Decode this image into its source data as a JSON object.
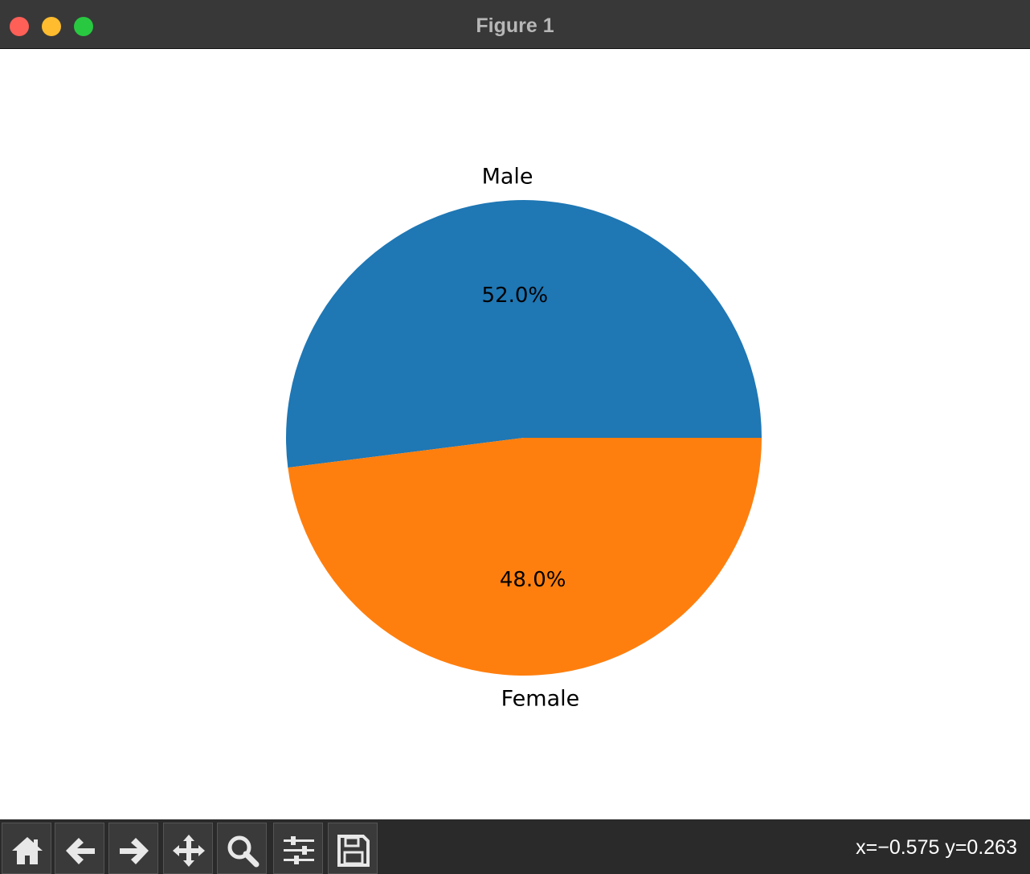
{
  "window": {
    "title": "Figure 1"
  },
  "chart_data": {
    "type": "pie",
    "categories": [
      "Male",
      "Female"
    ],
    "values": [
      52.0,
      48.0
    ],
    "autopct_labels": [
      "52.0%",
      "48.0%"
    ],
    "colors": [
      "#1f77b4",
      "#ff7f0e"
    ],
    "start_angle_deg": 0,
    "counterclockwise": true
  },
  "toolbar": {
    "buttons": [
      "home-icon",
      "back-arrow-icon",
      "forward-arrow-icon",
      "pan-icon",
      "zoom-icon",
      "configure-subplots-icon",
      "save-icon"
    ],
    "coords": "x=−0.575 y=0.263"
  }
}
